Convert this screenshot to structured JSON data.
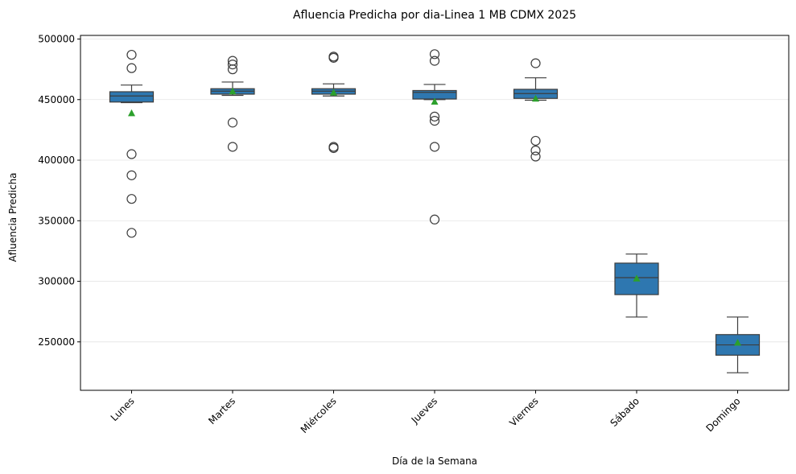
{
  "chart_data": {
    "type": "box",
    "title": "Afluencia Predicha por dia-Linea 1 MB CDMX 2025",
    "xlabel": "Día de la Semana",
    "ylabel": "Afluencia Predicha",
    "ylim": [
      210000,
      503000
    ],
    "yticks": [
      250000,
      300000,
      350000,
      400000,
      450000,
      500000
    ],
    "ytick_labels": [
      "250000",
      "300000",
      "350000",
      "400000",
      "450000",
      "500000"
    ],
    "grid": "horizontal",
    "colors": {
      "box": "#2e77b0",
      "mean_marker": "#2ca02c",
      "line": "#3d3d3d",
      "grid": "#e4e4e4"
    },
    "categories": [
      "Lunes",
      "Martes",
      "Miércoles",
      "Jueves",
      "Viernes",
      "Sábado",
      "Domingo"
    ],
    "boxes": [
      {
        "whislo": 447500,
        "q1": 448000,
        "med": 453000,
        "q3": 456500,
        "whishi": 462000,
        "mean": 439000,
        "fliers": [
          487000,
          476000,
          405000,
          387500,
          368000,
          340000
        ]
      },
      {
        "whislo": 453500,
        "q1": 454500,
        "med": 457000,
        "q3": 459000,
        "whishi": 464500,
        "mean": 457000,
        "fliers": [
          482000,
          479000,
          475000,
          431000,
          411000
        ]
      },
      {
        "whislo": 453000,
        "q1": 454500,
        "med": 457000,
        "q3": 459000,
        "whishi": 463000,
        "mean": 456000,
        "fliers": [
          485500,
          484500,
          411000,
          410000
        ]
      },
      {
        "whislo": 450000,
        "q1": 450500,
        "med": 456000,
        "q3": 457500,
        "whishi": 462500,
        "mean": 448500,
        "fliers": [
          487500,
          482000,
          436000,
          432500,
          411000,
          351000
        ]
      },
      {
        "whislo": 449500,
        "q1": 451000,
        "med": 455000,
        "q3": 458500,
        "whishi": 468000,
        "mean": 451000,
        "fliers": [
          480000,
          416000,
          408000,
          403000
        ]
      },
      {
        "whislo": 270500,
        "q1": 289000,
        "med": 303000,
        "q3": 315000,
        "whishi": 322500,
        "mean": 302500,
        "fliers": []
      },
      {
        "whislo": 224500,
        "q1": 239000,
        "med": 247500,
        "q3": 256000,
        "whishi": 270500,
        "mean": 249500,
        "fliers": []
      }
    ]
  }
}
